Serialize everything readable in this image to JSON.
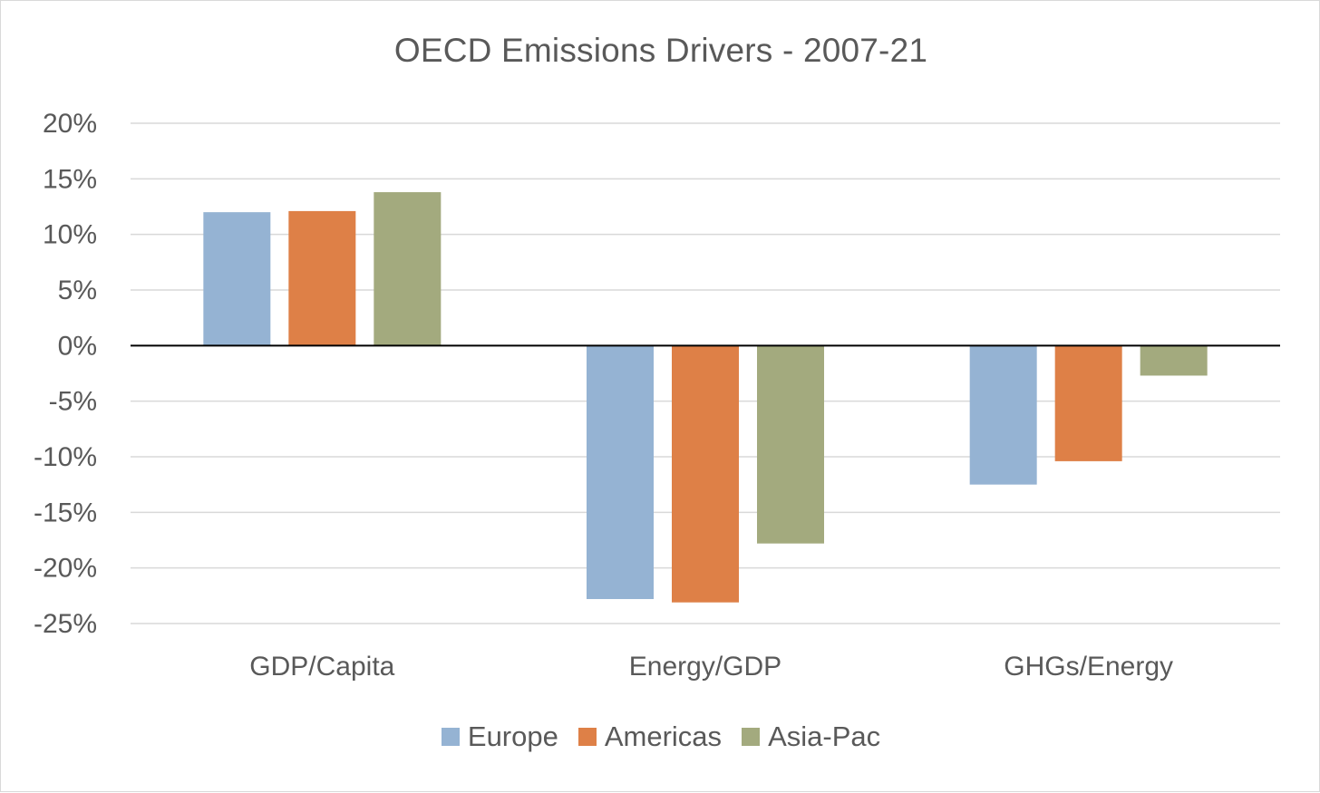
{
  "chart_data": {
    "type": "bar",
    "title": "OECD Emissions Drivers - 2007-21",
    "xlabel": "",
    "ylabel": "",
    "categories": [
      "GDP/Capita",
      "Energy/GDP",
      "GHGs/Energy"
    ],
    "series": [
      {
        "name": "Europe",
        "color": "#95b3d3",
        "values": [
          12.0,
          -22.8,
          -12.5
        ]
      },
      {
        "name": "Americas",
        "color": "#de8047",
        "values": [
          12.1,
          -23.1,
          -10.4
        ]
      },
      {
        "name": "Asia-Pac",
        "color": "#a3aa7e",
        "values": [
          13.8,
          -17.8,
          -2.7
        ]
      }
    ],
    "ylim": [
      -25,
      20
    ],
    "ytick_step": 5,
    "ytick_format": "percent",
    "grid": true,
    "legend_position": "bottom"
  }
}
